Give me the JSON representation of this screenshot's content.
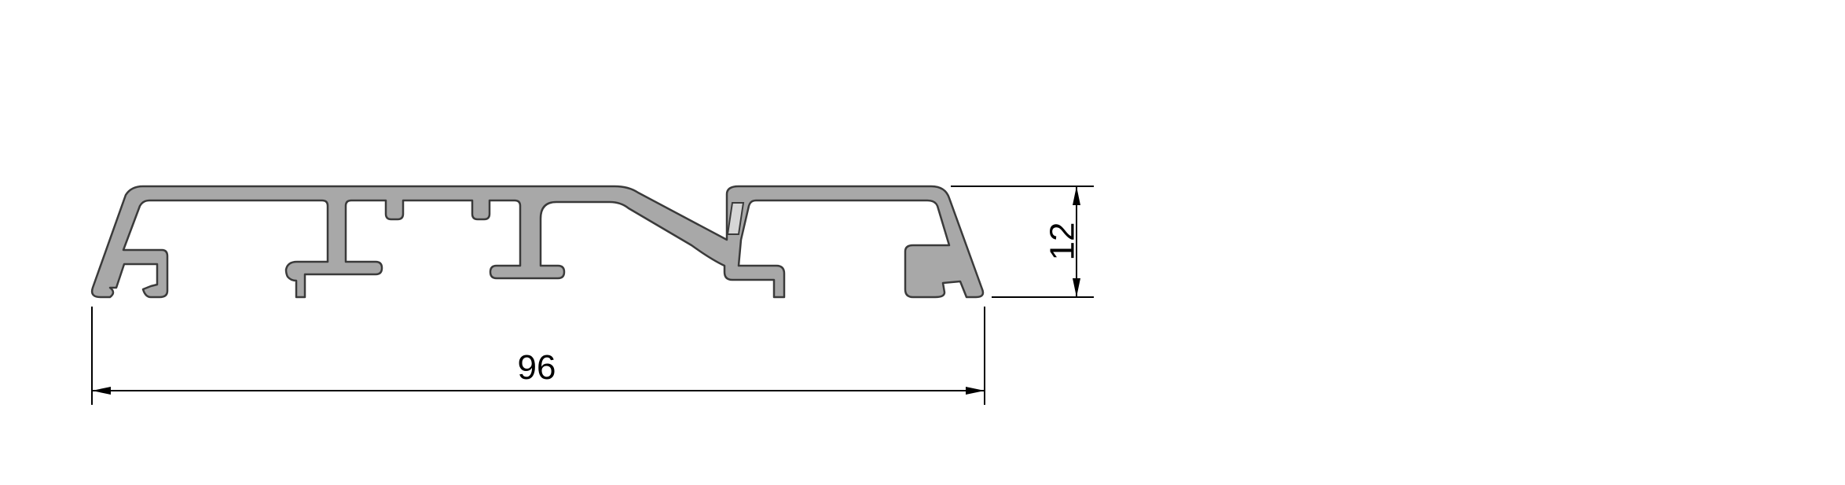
{
  "drawing": {
    "profile_fill": "#a8a8a8",
    "profile_stroke": "#3a3a3a",
    "dimension_color": "#000000",
    "background": "#ffffff"
  },
  "dimensions": {
    "width_label": "96",
    "height_label": "12"
  }
}
